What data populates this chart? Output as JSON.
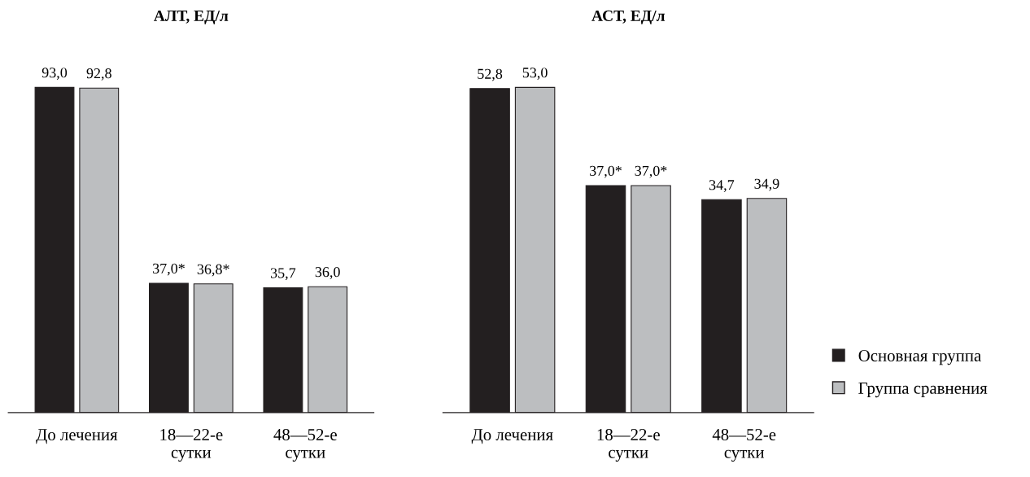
{
  "chart_data": [
    {
      "type": "bar",
      "title": "АЛТ, ЕД/л",
      "categories": [
        "До лечения",
        "18—22-е\nсутки",
        "48—52-е\nсутки"
      ],
      "tick_labels": "x",
      "series": [
        {
          "color": "#231f20",
          "values": [
            93.0,
            37.0,
            35.7
          ],
          "value_labels": [
            "93,0",
            "37,0*",
            "35,7"
          ]
        },
        {
          "color": "#bcbec0",
          "values": [
            92.8,
            36.8,
            36.0
          ],
          "value_labels": [
            "92,8",
            "36,8*",
            "36,0"
          ]
        }
      ]
    },
    {
      "type": "bar",
      "title": "АСТ, ЕД/л",
      "categories": [
        "До лечения",
        "18—22-е\nсутки",
        "48—52-е\nсутки"
      ],
      "tick_labels": "x",
      "legend": "bottom right",
      "series": [
        {
          "name": "Основная группа",
          "color": "#231f20",
          "values": [
            52.8,
            37.0,
            34.7
          ],
          "value_labels": [
            "52,8",
            "37,0*",
            "34,7"
          ]
        },
        {
          "name": "Группа сравнения",
          "color": "#bcbec0",
          "values": [
            53.0,
            37.0,
            34.9
          ],
          "value_labels": [
            "53,0",
            "37,0*",
            "34,9"
          ]
        }
      ]
    }
  ]
}
